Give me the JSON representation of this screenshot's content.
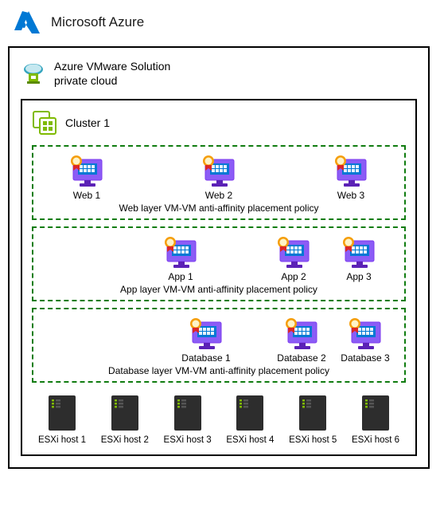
{
  "header": {
    "title": "Microsoft Azure",
    "logo_color": "#0078d4"
  },
  "avs": {
    "line1": "Azure VMware Solution",
    "line2": "private cloud",
    "icon_green": "#7fba00",
    "icon_bluegreen": "#36a5bf"
  },
  "cluster": {
    "title": "Cluster 1",
    "icon_color": "#7fba00"
  },
  "layers": {
    "web": {
      "border_color": "#107c10",
      "caption": "Web layer VM-VM anti-affinity placement policy",
      "vms": [
        "Web 1",
        "Web 2",
        "Web 3"
      ]
    },
    "app": {
      "border_color": "#107c10",
      "caption": "App layer VM-VM anti-affinity placement policy",
      "vms": [
        "App 1",
        "App 2",
        "App 3"
      ]
    },
    "db": {
      "border_color": "#107c10",
      "caption": "Database layer VM-VM anti-affinity placement policy",
      "vms": [
        "Database 1",
        "Database 2",
        "Database 3"
      ]
    }
  },
  "vm_style": {
    "body_color": "#8b5cf6",
    "body_dark": "#7c3aed",
    "screen_color": "#0078d4",
    "stand_color": "#5b21b6",
    "badge_color": "#f59e0b",
    "badge_ribbon": "#dc2626"
  },
  "hosts": {
    "labels": [
      "ESXi host 1",
      "ESXi host 2",
      "ESXi host 3",
      "ESXi host 4",
      "ESXi host 5",
      "ESXi host 6"
    ],
    "body_color": "#2d2d2d",
    "led_color": "#7fba00"
  }
}
